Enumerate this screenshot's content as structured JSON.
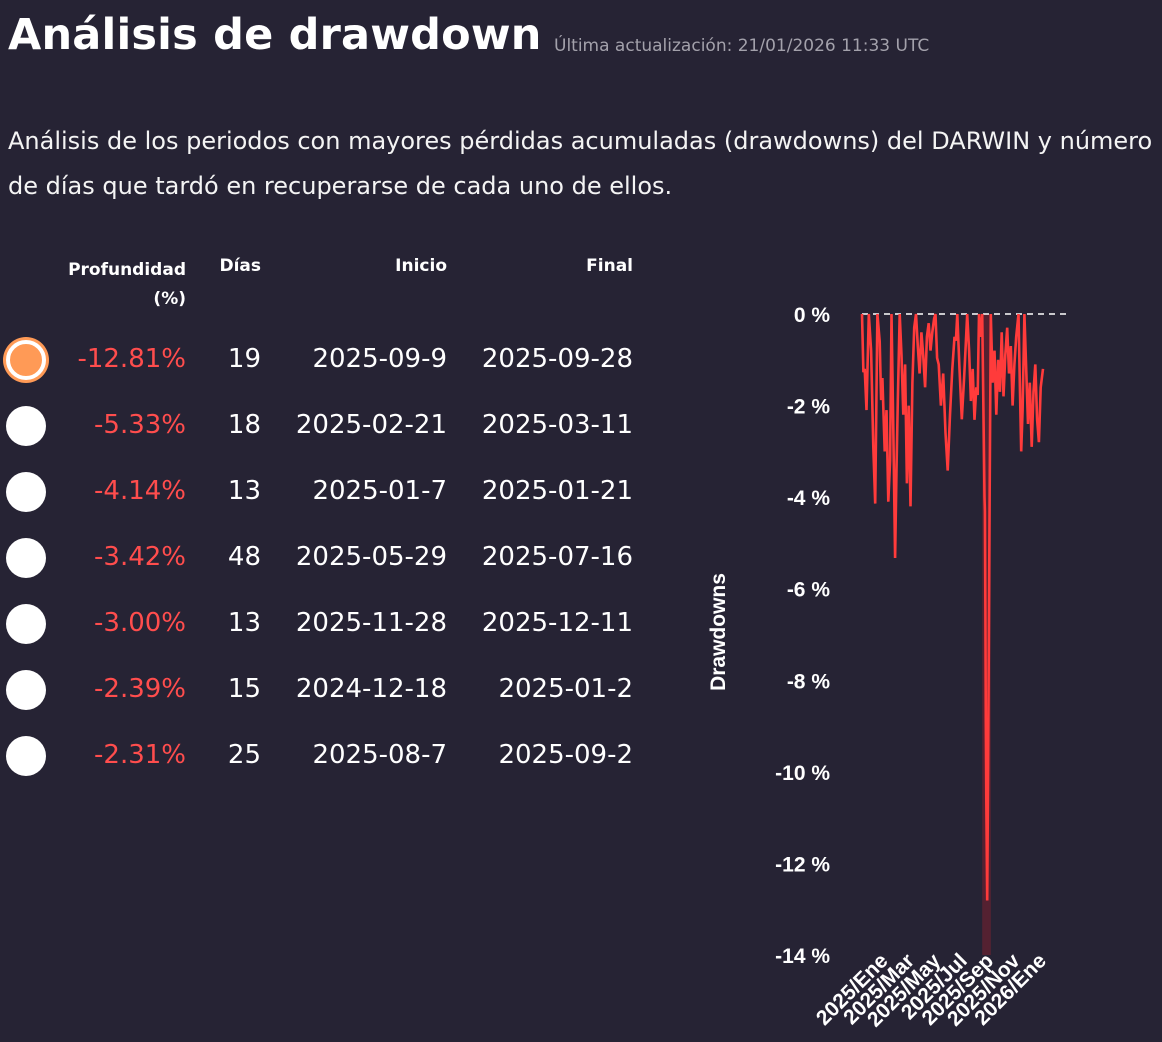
{
  "header": {
    "title": "Análisis de drawdown",
    "updated": "Última actualización: 21/01/2026 11:33 UTC",
    "description": "Análisis de los periodos con mayores pérdidas acumuladas (drawdowns) del DARWIN y número de días que tardó en recuperarse de cada uno de ellos."
  },
  "table": {
    "headers": {
      "depth": "Profundidad (%)",
      "days": "Días",
      "start": "Inicio",
      "end": "Final"
    },
    "rows": [
      {
        "depth": "-12.81%",
        "days": "19",
        "start": "2025-09-9",
        "end": "2025-09-28",
        "selected": true
      },
      {
        "depth": "-5.33%",
        "days": "18",
        "start": "2025-02-21",
        "end": "2025-03-11",
        "selected": false
      },
      {
        "depth": "-4.14%",
        "days": "13",
        "start": "2025-01-7",
        "end": "2025-01-21",
        "selected": false
      },
      {
        "depth": "-3.42%",
        "days": "48",
        "start": "2025-05-29",
        "end": "2025-07-16",
        "selected": false
      },
      {
        "depth": "-3.00%",
        "days": "13",
        "start": "2025-11-28",
        "end": "2025-12-11",
        "selected": false
      },
      {
        "depth": "-2.39%",
        "days": "15",
        "start": "2024-12-18",
        "end": "2025-01-2",
        "selected": false
      },
      {
        "depth": "-2.31%",
        "days": "25",
        "start": "2025-08-7",
        "end": "2025-09-2",
        "selected": false
      }
    ]
  },
  "chart_data": {
    "type": "area",
    "ylabel": "Drawdowns",
    "ylim": [
      -14,
      0
    ],
    "yticks": [
      0,
      -2,
      -4,
      -6,
      -8,
      -10,
      -12,
      -14
    ],
    "ytick_labels": [
      "0 %",
      "-2 %",
      "-4 %",
      "-6 %",
      "-8 %",
      "-10 %",
      "-12 %",
      "-14 %"
    ],
    "xtick_labels": [
      "2025/Ene",
      "2025/Mar",
      "2025/May",
      "2025/Jul",
      "2025/Sep",
      "2025/Nov",
      "2026/Ene"
    ],
    "zero_line": "dashed",
    "grid": false,
    "colors": {
      "line": "#ff3b3b",
      "highlight": "#7a2130"
    },
    "highlight": {
      "start": "2025-09-09",
      "end": "2025-09-28",
      "depth": -12.81
    },
    "series": [
      {
        "x": [
          "2024-12-18",
          "2024-12-24",
          "2024-12-28",
          "2025-01-02",
          "2025-01-07",
          "2025-01-12",
          "2025-01-16",
          "2025-01-21",
          "2025-01-26",
          "2025-02-01",
          "2025-02-06",
          "2025-02-10",
          "2025-02-14",
          "2025-02-18",
          "2025-02-21",
          "2025-02-25",
          "2025-03-01",
          "2025-03-04",
          "2025-03-07",
          "2025-03-11",
          "2025-03-15",
          "2025-03-19",
          "2025-03-23",
          "2025-03-27",
          "2025-03-31",
          "2025-04-04",
          "2025-04-08",
          "2025-04-12",
          "2025-04-16",
          "2025-04-20",
          "2025-04-24",
          "2025-04-28",
          "2025-05-02",
          "2025-05-06",
          "2025-05-10",
          "2025-05-14",
          "2025-05-18",
          "2025-05-22",
          "2025-05-26",
          "2025-05-29",
          "2025-06-05",
          "2025-06-10",
          "2025-06-15",
          "2025-06-20",
          "2025-06-25",
          "2025-06-30",
          "2025-07-05",
          "2025-07-10",
          "2025-07-16",
          "2025-07-21",
          "2025-07-26",
          "2025-07-31",
          "2025-08-04",
          "2025-08-07",
          "2025-08-11",
          "2025-08-15",
          "2025-08-19",
          "2025-08-23",
          "2025-08-27",
          "2025-09-02",
          "2025-09-06",
          "2025-09-09",
          "2025-09-12",
          "2025-09-14",
          "2025-09-15",
          "2025-09-16",
          "2025-09-17",
          "2025-09-18",
          "2025-09-20",
          "2025-09-22",
          "2025-09-25",
          "2025-09-28",
          "2025-10-02",
          "2025-10-06",
          "2025-10-10",
          "2025-10-14",
          "2025-10-18",
          "2025-10-22",
          "2025-10-26",
          "2025-10-30",
          "2025-11-03",
          "2025-11-07",
          "2025-11-11",
          "2025-11-15",
          "2025-11-19",
          "2025-11-23",
          "2025-11-28",
          "2025-12-01",
          "2025-12-04",
          "2025-12-07",
          "2025-12-11",
          "2025-12-15",
          "2025-12-19",
          "2025-12-23",
          "2025-12-27",
          "2025-12-31",
          "2026-01-04",
          "2026-01-08",
          "2026-01-12",
          "2026-01-16",
          "2026-01-21"
        ],
        "values": [
          0,
          -1.2,
          -2.1,
          0,
          -0.8,
          -2.9,
          -4.14,
          0,
          -0.6,
          -1.4,
          -3.0,
          -2.1,
          -4.1,
          -3.2,
          0,
          -2.5,
          -5.33,
          -3.4,
          -1.9,
          0,
          -0.9,
          -2.2,
          -1.1,
          -3.7,
          -2.0,
          -4.2,
          -1.5,
          -0.3,
          0,
          -0.7,
          -1.3,
          -0.4,
          -0.9,
          -1.6,
          -0.5,
          -0.2,
          -0.8,
          -0.4,
          -0.1,
          0,
          -1.1,
          -2.0,
          -1.3,
          -2.6,
          -3.42,
          -2.2,
          -1.2,
          -0.5,
          0,
          -1.2,
          -2.3,
          -1.4,
          -0.6,
          0,
          -0.8,
          -1.9,
          -1.2,
          -2.31,
          -1.6,
          0,
          -0.5,
          0,
          -2.4,
          -4.0,
          -4.3,
          -6.5,
          -8.9,
          -10.6,
          -12.81,
          -10.0,
          -4.5,
          0,
          -1.5,
          -0.8,
          -2.2,
          -1.0,
          -1.7,
          -0.4,
          -1.8,
          -0.9,
          -0.3,
          -1.3,
          -0.7,
          -2.0,
          -1.1,
          -0.5,
          0,
          -1.6,
          -3.0,
          -2.1,
          0,
          -1.2,
          -2.4,
          -1.5,
          -2.9,
          -1.7,
          -1.1,
          -2.3,
          -2.8,
          -1.6,
          -1.2
        ]
      }
    ]
  }
}
